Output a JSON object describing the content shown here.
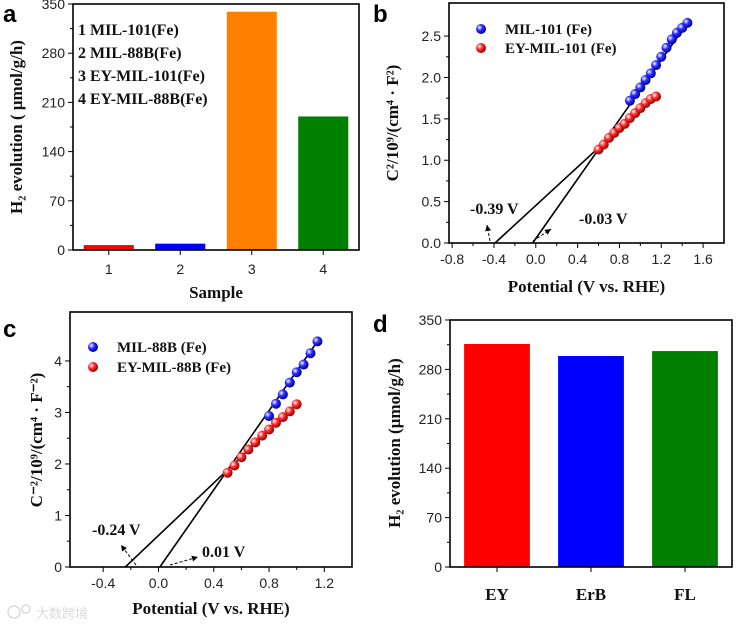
{
  "chart_data": [
    {
      "panel": "a",
      "type": "bar",
      "categories": [
        "1",
        "2",
        "3",
        "4"
      ],
      "values": [
        7,
        9,
        339,
        190
      ],
      "colors": [
        "#ff0000",
        "#0000ff",
        "#ff8000",
        "#008000"
      ],
      "xlabel": "Sample",
      "ylabel": "H₂ evolution ( μmol/g/h)",
      "ylim": [
        0,
        350
      ],
      "yticks": [
        0,
        70,
        140,
        210,
        280,
        350
      ],
      "legend": [
        "1 MIL-101(Fe)",
        "2 MIL-88B(Fe)",
        "3 EY-MIL-101(Fe)",
        "4 EY-MIL-88B(Fe)"
      ]
    },
    {
      "panel": "b",
      "type": "scatter",
      "xlabel": "Potential (V vs. RHE)",
      "ylabel": "C²/10⁹/(cm⁴ · F²)",
      "xlim": [
        -0.83,
        1.8
      ],
      "ylim": [
        0,
        2.9
      ],
      "xticks": [
        -0.8,
        -0.4,
        0.0,
        0.4,
        0.8,
        1.2,
        1.6
      ],
      "yticks": [
        0.0,
        0.5,
        1.0,
        1.5,
        2.0,
        2.5
      ],
      "tick_decimals": 1,
      "series": [
        {
          "name": "MIL-101 (Fe)",
          "color": "#1a1aff",
          "x": [
            0.9,
            0.95,
            1.0,
            1.05,
            1.1,
            1.15,
            1.2,
            1.25,
            1.3,
            1.35,
            1.4,
            1.45
          ],
          "y": [
            1.72,
            1.8,
            1.88,
            1.97,
            2.05,
            2.15,
            2.25,
            2.36,
            2.46,
            2.54,
            2.6,
            2.66
          ],
          "fit_intercept_x": -0.03,
          "fit_end": [
            1.45,
            2.66
          ]
        },
        {
          "name": "EY-MIL-101 (Fe)",
          "color": "#ff2020",
          "x": [
            0.6,
            0.65,
            0.7,
            0.75,
            0.8,
            0.85,
            0.9,
            0.95,
            1.0,
            1.05,
            1.1,
            1.15
          ],
          "y": [
            1.13,
            1.19,
            1.27,
            1.33,
            1.39,
            1.44,
            1.51,
            1.57,
            1.63,
            1.69,
            1.74,
            1.77
          ],
          "fit_intercept_x": -0.39,
          "fit_end": [
            1.15,
            1.79
          ]
        }
      ],
      "annotations": [
        "-0.39 V",
        "-0.03 V"
      ]
    },
    {
      "panel": "c",
      "type": "scatter",
      "xlabel": "Potential (V vs. RHE)",
      "ylabel": "C⁻²/10⁹/(cm⁴ · F⁻²)",
      "xlim": [
        -0.64,
        1.4
      ],
      "ylim": [
        0,
        4.95
      ],
      "xticks": [
        -0.4,
        0.0,
        0.4,
        0.8,
        1.2
      ],
      "yticks": [
        0,
        1,
        2,
        3,
        4
      ],
      "tick_decimals": 1,
      "ytick_decimals": 0,
      "series": [
        {
          "name": "MIL-88B (Fe)",
          "color": "#1a1aff",
          "x": [
            0.8,
            0.85,
            0.9,
            0.95,
            1.0,
            1.05,
            1.1,
            1.15
          ],
          "y": [
            2.93,
            3.17,
            3.35,
            3.58,
            3.78,
            3.93,
            4.15,
            4.38
          ],
          "fit_intercept_x": 0.01,
          "fit_end": [
            1.15,
            4.38
          ]
        },
        {
          "name": "EY-MIL-88B (Fe)",
          "color": "#ff2020",
          "x": [
            0.5,
            0.55,
            0.6,
            0.65,
            0.7,
            0.75,
            0.8,
            0.85,
            0.9,
            0.95,
            1.0
          ],
          "y": [
            1.83,
            1.97,
            2.13,
            2.28,
            2.42,
            2.55,
            2.67,
            2.8,
            2.91,
            3.02,
            3.16
          ],
          "fit_intercept_x": -0.24,
          "fit_end": [
            1.0,
            3.16
          ]
        }
      ],
      "annotations": [
        "-0.24 V",
        "0.01 V"
      ]
    },
    {
      "panel": "d",
      "type": "bar",
      "categories": [
        "EY",
        "ErB",
        "FL"
      ],
      "values": [
        316,
        299,
        306
      ],
      "colors": [
        "#ff0000",
        "#0000ff",
        "#008000"
      ],
      "xlabel": "",
      "ylabel": "H₂ evolution (μmol/g/h)",
      "ylim": [
        0,
        350
      ],
      "yticks": [
        0,
        70,
        140,
        210,
        280,
        350
      ]
    }
  ],
  "panel_labels": [
    "a",
    "b",
    "c",
    "d"
  ],
  "watermark": "大数跨境"
}
